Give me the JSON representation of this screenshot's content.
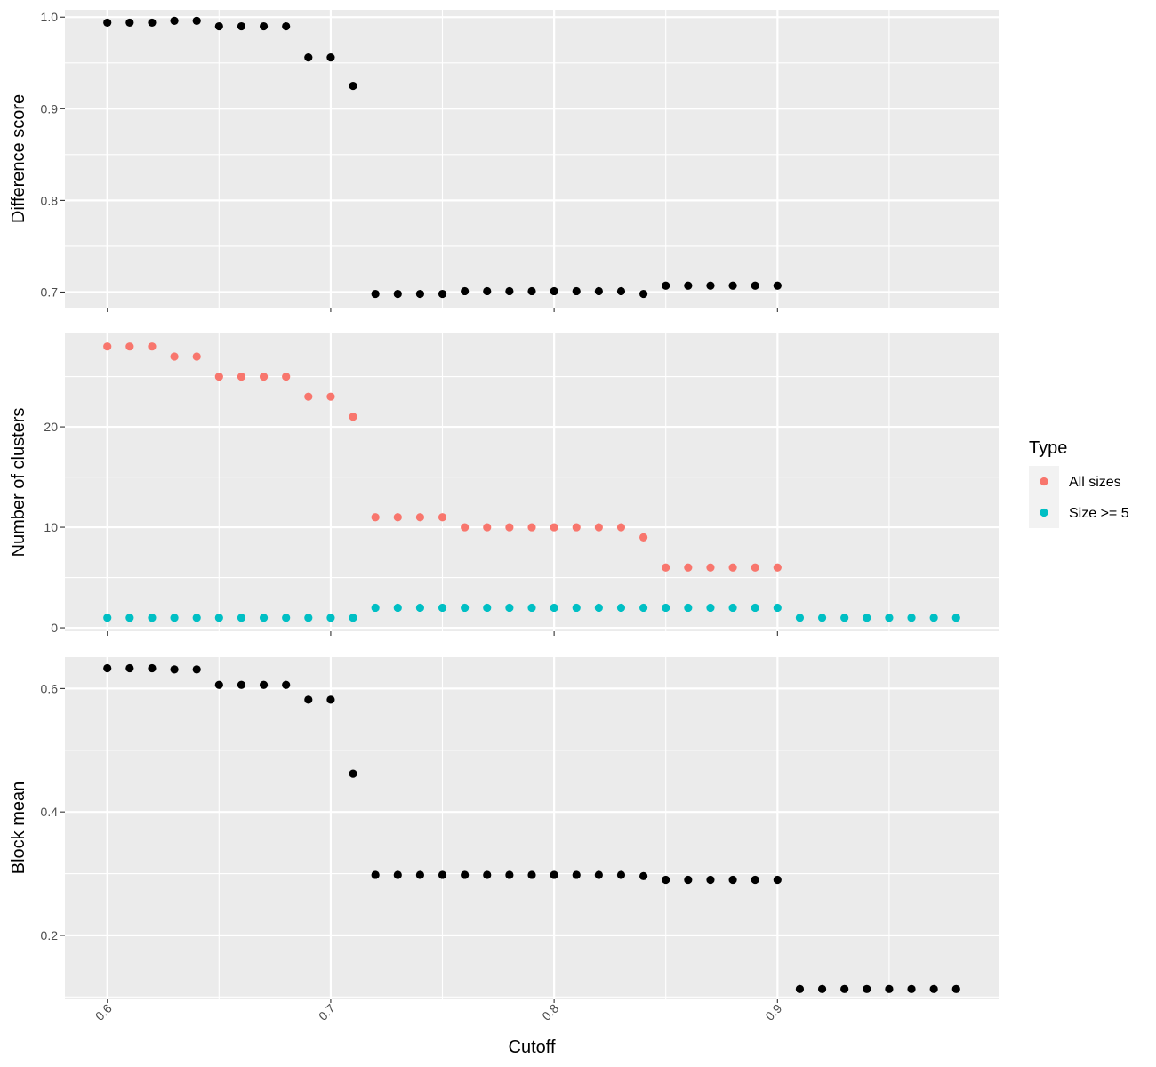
{
  "chart_data": {
    "type": "scatter",
    "xlabel": "Cutoff",
    "xlim": [
      0.581,
      0.999
    ],
    "x_ticks": [
      "0.6",
      "0.7",
      "0.8",
      "0.9"
    ],
    "x_tick_values": [
      0.6,
      0.7,
      0.8,
      0.9
    ],
    "x_tick_rotation": "45",
    "grid": true,
    "legend": {
      "title": "Type",
      "placement": "right",
      "entries": [
        {
          "label": "All sizes",
          "color": "#F8766D"
        },
        {
          "label": "Size >= 5",
          "color": "#00BFC4"
        }
      ]
    },
    "panels": [
      {
        "ylabel": "Difference score",
        "ylim": [
          0.683,
          1.008
        ],
        "y_ticks": [
          "0.7",
          "0.8",
          "0.9",
          "1.0"
        ],
        "y_tick_values": [
          0.7,
          0.8,
          0.9,
          1.0
        ],
        "series": [
          {
            "color": "#000000",
            "x": [
              0.6,
              0.61,
              0.62,
              0.63,
              0.64,
              0.65,
              0.66,
              0.67,
              0.68,
              0.69,
              0.7,
              0.71,
              0.72,
              0.73,
              0.74,
              0.75,
              0.76,
              0.77,
              0.78,
              0.79,
              0.8,
              0.81,
              0.82,
              0.83,
              0.84,
              0.85,
              0.86,
              0.87,
              0.88,
              0.89,
              0.9
            ],
            "y": [
              0.994,
              0.994,
              0.994,
              0.996,
              0.996,
              0.99,
              0.99,
              0.99,
              0.99,
              0.956,
              0.956,
              0.925,
              0.698,
              0.698,
              0.698,
              0.698,
              0.701,
              0.701,
              0.701,
              0.701,
              0.701,
              0.701,
              0.701,
              0.701,
              0.698,
              0.707,
              0.707,
              0.707,
              0.707,
              0.707,
              0.707
            ]
          }
        ]
      },
      {
        "ylabel": "Number of clusters",
        "ylim": [
          -0.35,
          29.3
        ],
        "y_ticks": [
          "0",
          "10",
          "20"
        ],
        "y_tick_values": [
          0,
          10,
          20
        ],
        "series": [
          {
            "name": "All sizes",
            "color": "#F8766D",
            "x": [
              0.6,
              0.61,
              0.62,
              0.63,
              0.64,
              0.65,
              0.66,
              0.67,
              0.68,
              0.69,
              0.7,
              0.71,
              0.72,
              0.73,
              0.74,
              0.75,
              0.76,
              0.77,
              0.78,
              0.79,
              0.8,
              0.81,
              0.82,
              0.83,
              0.84,
              0.85,
              0.86,
              0.87,
              0.88,
              0.89,
              0.9
            ],
            "y": [
              28,
              28,
              28,
              27,
              27,
              25,
              25,
              25,
              25,
              23,
              23,
              21,
              11,
              11,
              11,
              11,
              10,
              10,
              10,
              10,
              10,
              10,
              10,
              10,
              9,
              6,
              6,
              6,
              6,
              6,
              6
            ]
          },
          {
            "name": "Size >= 5",
            "color": "#00BFC4",
            "x": [
              0.6,
              0.61,
              0.62,
              0.63,
              0.64,
              0.65,
              0.66,
              0.67,
              0.68,
              0.69,
              0.7,
              0.71,
              0.72,
              0.73,
              0.74,
              0.75,
              0.76,
              0.77,
              0.78,
              0.79,
              0.8,
              0.81,
              0.82,
              0.83,
              0.84,
              0.85,
              0.86,
              0.87,
              0.88,
              0.89,
              0.9,
              0.91,
              0.92,
              0.93,
              0.94,
              0.95,
              0.96,
              0.97,
              0.98
            ],
            "y": [
              1,
              1,
              1,
              1,
              1,
              1,
              1,
              1,
              1,
              1,
              1,
              1,
              2,
              2,
              2,
              2,
              2,
              2,
              2,
              2,
              2,
              2,
              2,
              2,
              2,
              2,
              2,
              2,
              2,
              2,
              2,
              1,
              1,
              1,
              1,
              1,
              1,
              1,
              1
            ]
          }
        ]
      },
      {
        "ylabel": "Block mean",
        "ylim": [
          0.0976,
          0.651
        ],
        "y_ticks": [
          "0.2",
          "0.4",
          "0.6"
        ],
        "y_tick_values": [
          0.2,
          0.4,
          0.6
        ],
        "series": [
          {
            "color": "#000000",
            "x": [
              0.6,
              0.61,
              0.62,
              0.63,
              0.64,
              0.65,
              0.66,
              0.67,
              0.68,
              0.69,
              0.7,
              0.71,
              0.72,
              0.73,
              0.74,
              0.75,
              0.76,
              0.77,
              0.78,
              0.79,
              0.8,
              0.81,
              0.82,
              0.83,
              0.84,
              0.85,
              0.86,
              0.87,
              0.88,
              0.89,
              0.9,
              0.91,
              0.92,
              0.93,
              0.94,
              0.95,
              0.96,
              0.97,
              0.98
            ],
            "y": [
              0.633,
              0.633,
              0.633,
              0.631,
              0.631,
              0.606,
              0.606,
              0.606,
              0.606,
              0.582,
              0.582,
              0.462,
              0.298,
              0.298,
              0.298,
              0.298,
              0.298,
              0.298,
              0.298,
              0.298,
              0.298,
              0.298,
              0.298,
              0.298,
              0.296,
              0.29,
              0.29,
              0.29,
              0.29,
              0.29,
              0.29,
              0.113,
              0.113,
              0.113,
              0.113,
              0.113,
              0.113,
              0.113,
              0.113
            ]
          }
        ]
      }
    ]
  }
}
